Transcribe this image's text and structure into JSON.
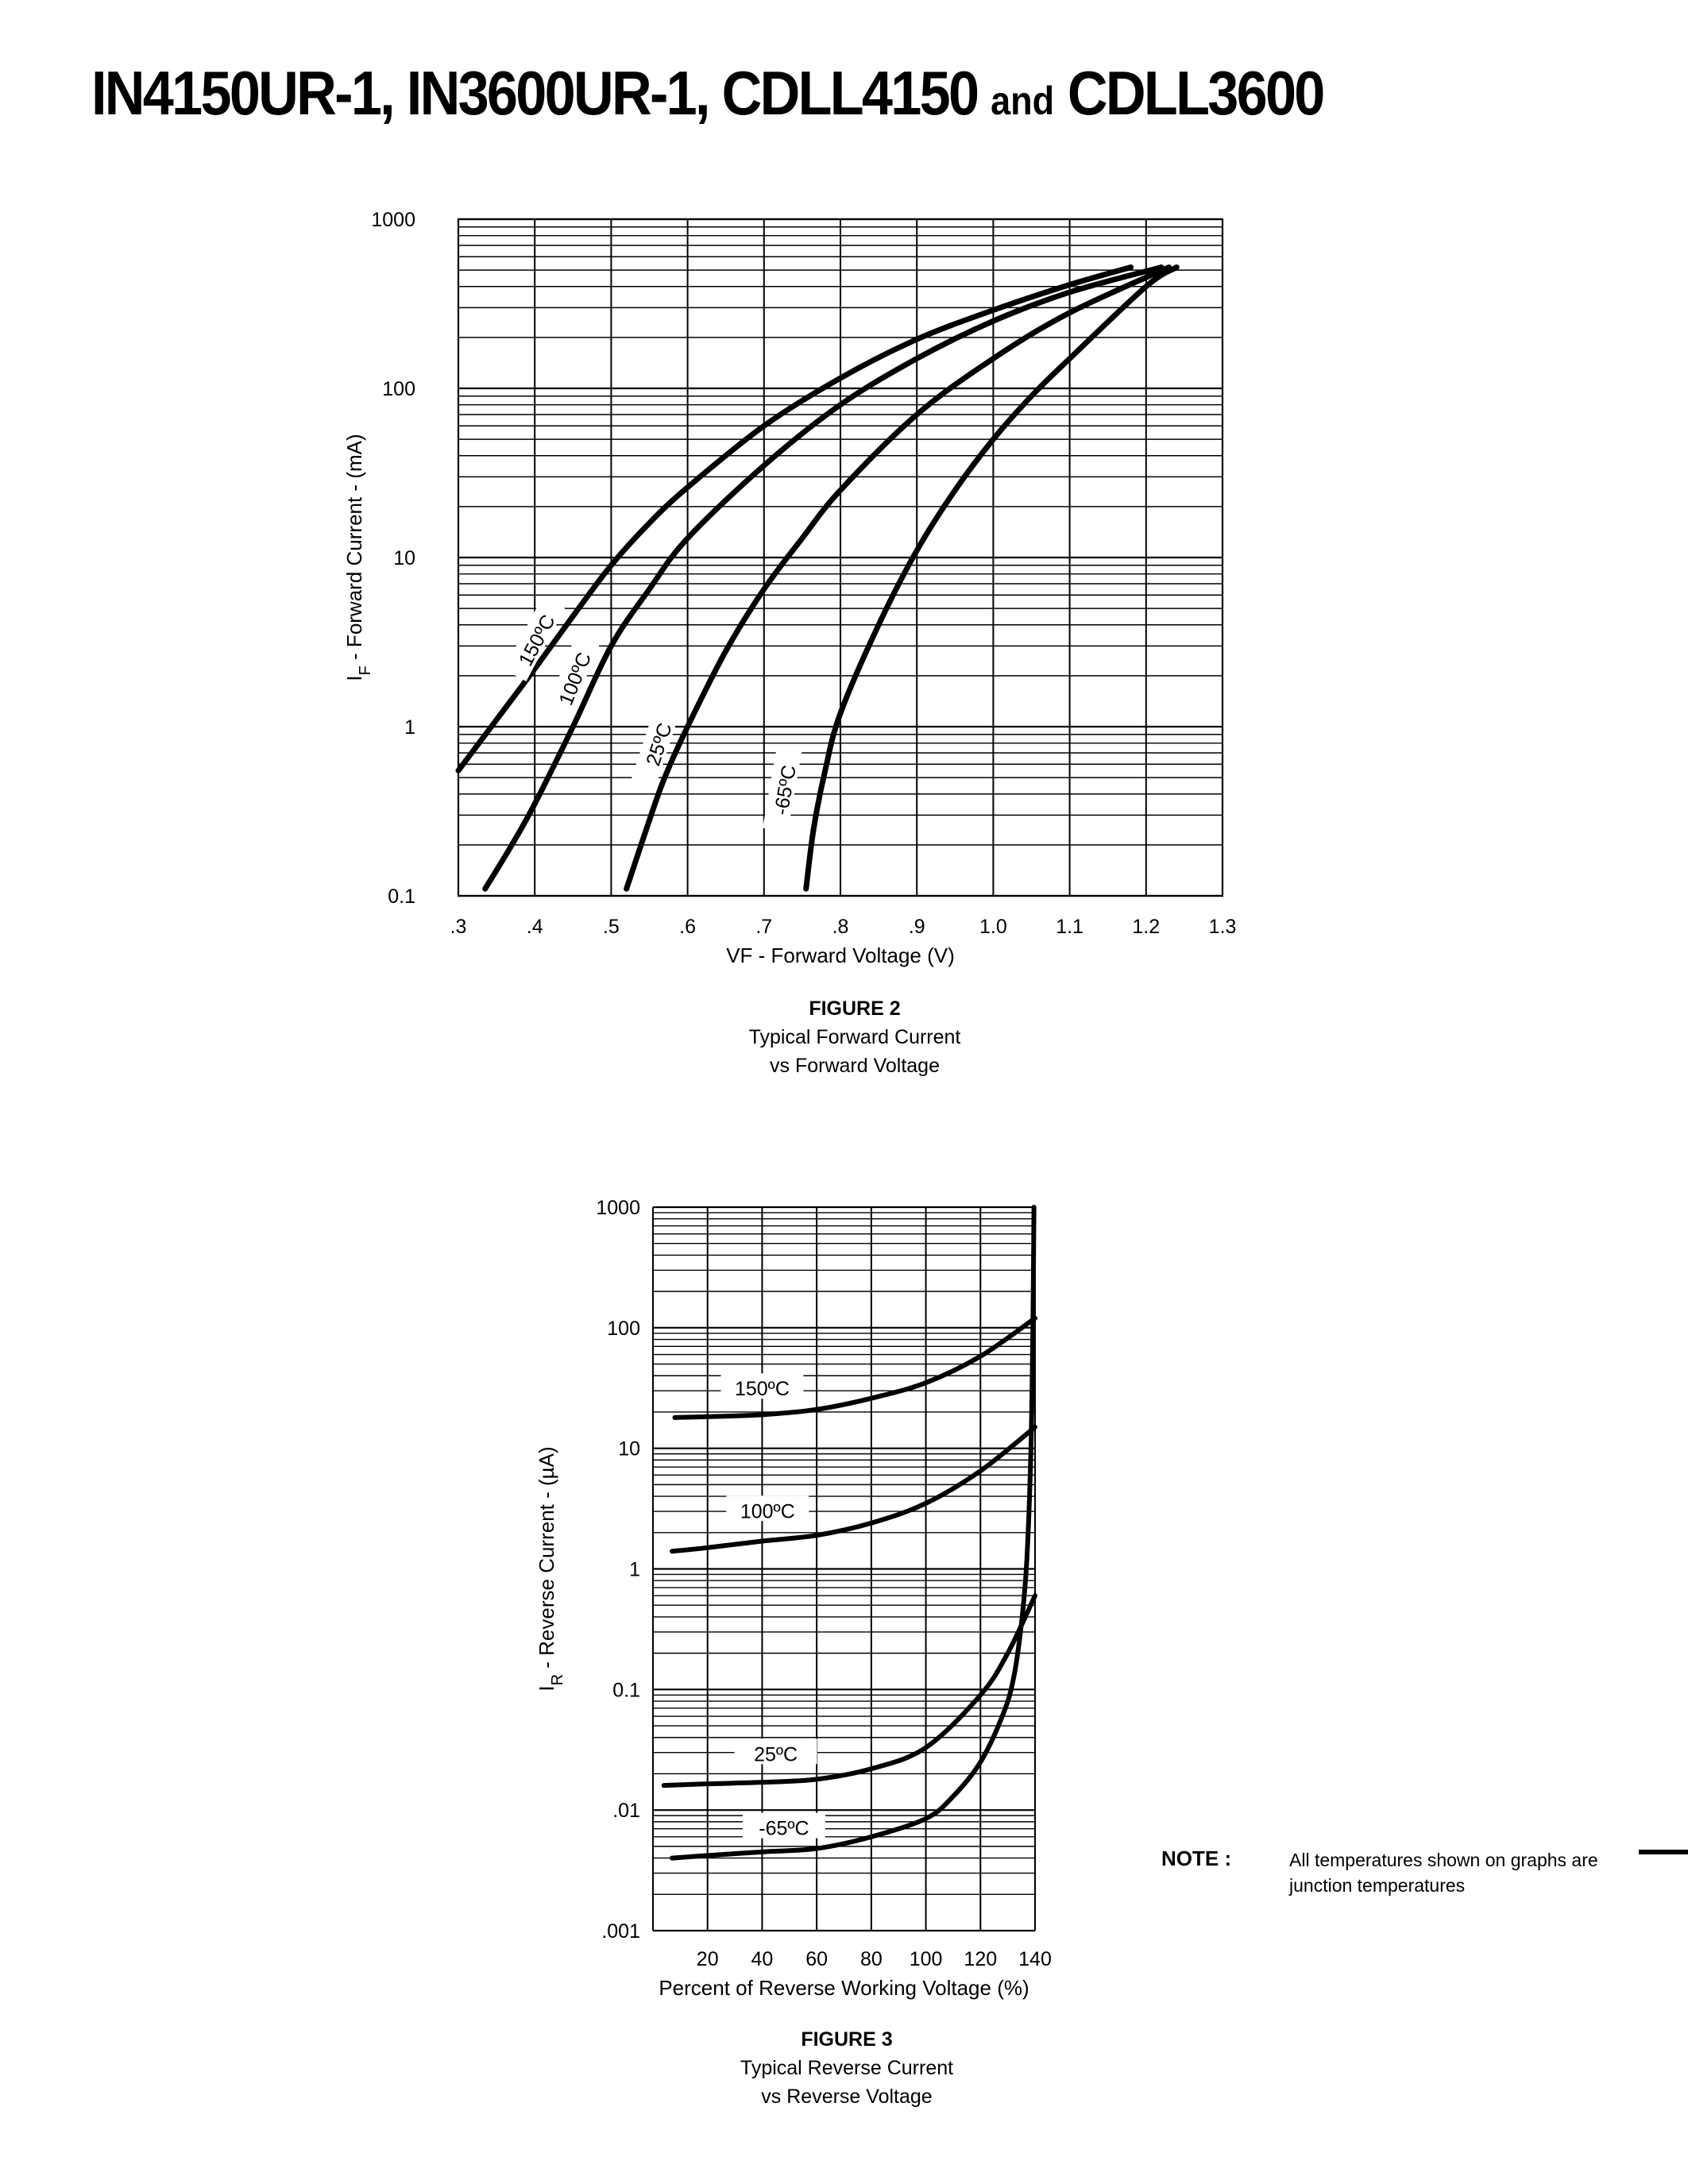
{
  "title": {
    "part1": "IN4150UR-1, IN3600UR-1, CDLL4150 ",
    "and": "and",
    "part2": " CDLL3600"
  },
  "chart_data": [
    {
      "type": "line",
      "figure_label": "FIGURE 2",
      "caption_line1": "Typical Forward Current",
      "caption_line2": "vs Forward Voltage",
      "xlabel": "VF - Forward Voltage (V)",
      "ylabel": "IF - Forward Current - (mA)",
      "ylabel_main": "I",
      "ylabel_sub": "F",
      "ylabel_rest": " - Forward Current - (mA)",
      "xlim": [
        0.3,
        1.3
      ],
      "ylim": [
        0.1,
        1000
      ],
      "yscale": "log",
      "grid": true,
      "xticks": [
        0.3,
        0.4,
        0.5,
        0.6,
        0.7,
        0.8,
        0.9,
        1.0,
        1.1,
        1.2,
        1.3
      ],
      "xtick_labels": [
        ".3",
        ".4",
        ".5",
        ".6",
        ".7",
        ".8",
        ".9",
        "1.0",
        "1.1",
        "1.2",
        "1.3"
      ],
      "yticks": [
        0.1,
        1,
        10,
        100,
        1000
      ],
      "ytick_labels": [
        "0.1",
        "1",
        "10",
        "100",
        "1000"
      ],
      "series": [
        {
          "name": "150ºC",
          "x": [
            0.3,
            0.35,
            0.4,
            0.45,
            0.5,
            0.55,
            0.6,
            0.7,
            0.8,
            0.9,
            1.0,
            1.1,
            1.18
          ],
          "y": [
            0.55,
            1.1,
            2.2,
            4.5,
            9,
            16,
            26,
            60,
            115,
            195,
            290,
            410,
            520
          ],
          "label_at": [
            0.405,
            3.2,
            -62
          ]
        },
        {
          "name": "100ºC",
          "x": [
            0.335,
            0.37,
            0.4,
            0.45,
            0.5,
            0.55,
            0.6,
            0.7,
            0.8,
            0.9,
            1.0,
            1.1,
            1.22
          ],
          "y": [
            0.11,
            0.2,
            0.35,
            1.0,
            3.0,
            6.5,
            13,
            35,
            80,
            150,
            250,
            370,
            520
          ],
          "label_at": [
            0.455,
            1.9,
            -68
          ]
        },
        {
          "name": "25ºC",
          "x": [
            0.52,
            0.55,
            0.57,
            0.6,
            0.65,
            0.7,
            0.75,
            0.8,
            0.9,
            1.0,
            1.1,
            1.23
          ],
          "y": [
            0.11,
            0.28,
            0.5,
            1.0,
            2.8,
            6.5,
            13,
            25,
            70,
            150,
            280,
            520
          ],
          "label_at": [
            0.565,
            0.78,
            -72
          ]
        },
        {
          "name": "-65ºC",
          "x": [
            0.755,
            0.765,
            0.78,
            0.8,
            0.85,
            0.9,
            0.95,
            1.0,
            1.05,
            1.1,
            1.2,
            1.24
          ],
          "y": [
            0.11,
            0.25,
            0.55,
            1.2,
            4,
            11,
            25,
            50,
            90,
            150,
            400,
            520
          ],
          "label_at": [
            0.73,
            0.42,
            -80
          ]
        }
      ]
    },
    {
      "type": "line",
      "figure_label": "FIGURE 3",
      "caption_line1": "Typical Reverse Current",
      "caption_line2": "vs Reverse Voltage",
      "xlabel": "Percent of Reverse Working Voltage (%)",
      "ylabel": "IR - Reverse Current - (µA)",
      "ylabel_main": "I",
      "ylabel_sub": "R",
      "ylabel_rest": " - Reverse Current - (µA)",
      "xlim": [
        0,
        140
      ],
      "ylim": [
        0.001,
        1000
      ],
      "yscale": "log",
      "grid": true,
      "xticks": [
        20,
        40,
        60,
        80,
        100,
        120,
        140
      ],
      "xtick_labels": [
        "20",
        "40",
        "60",
        "80",
        "100",
        "120",
        "140"
      ],
      "yticks": [
        0.001,
        0.01,
        0.1,
        1,
        10,
        100,
        1000
      ],
      "ytick_labels": [
        ".001",
        ".01",
        "0.1",
        "1",
        "10",
        "100",
        "1000"
      ],
      "series": [
        {
          "name": "150ºC",
          "x": [
            8,
            20,
            40,
            60,
            80,
            100,
            120,
            140
          ],
          "y": [
            18,
            18.3,
            19,
            21,
            26,
            35,
            58,
            120
          ],
          "label_at": [
            40,
            30,
            0
          ]
        },
        {
          "name": "100ºC",
          "x": [
            7,
            20,
            40,
            60,
            80,
            100,
            120,
            140
          ],
          "y": [
            1.4,
            1.5,
            1.7,
            1.9,
            2.4,
            3.5,
            6.5,
            15
          ],
          "label_at": [
            42,
            2.9,
            0
          ]
        },
        {
          "name": "25ºC",
          "x": [
            4,
            20,
            40,
            60,
            80,
            100,
            120,
            130,
            140
          ],
          "y": [
            0.016,
            0.0165,
            0.017,
            0.018,
            0.022,
            0.033,
            0.09,
            0.2,
            0.6
          ],
          "label_at": [
            45,
            0.028,
            0
          ]
        },
        {
          "name": "-65ºC",
          "x": [
            7,
            20,
            40,
            60,
            80,
            100,
            110,
            120,
            128,
            132,
            135,
            137,
            138.5,
            139.2,
            139.6
          ],
          "y": [
            0.004,
            0.0042,
            0.0045,
            0.0048,
            0.006,
            0.0085,
            0.013,
            0.025,
            0.06,
            0.12,
            0.35,
            1.2,
            10,
            100,
            1000
          ],
          "label_at": [
            48,
            0.0068,
            0
          ]
        }
      ]
    }
  ],
  "note": {
    "label": "NOTE :",
    "text": "All temperatures shown on graphs are junction temperatures"
  }
}
